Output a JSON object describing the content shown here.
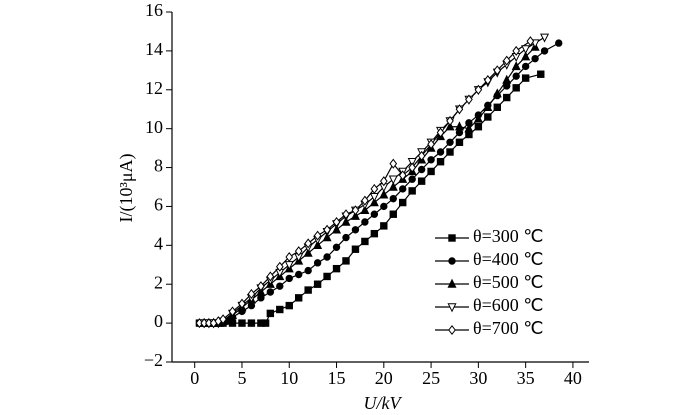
{
  "chart_data": {
    "type": "line",
    "xlabel": "U/kV",
    "ylabel": "I/(10³μA)",
    "xlim": [
      -2.4,
      41.7
    ],
    "ylim": [
      -2,
      16
    ],
    "xticks": [
      0,
      5,
      10,
      15,
      20,
      25,
      30,
      35,
      40
    ],
    "yticks": [
      {
        "value": -2,
        "label": "−2"
      },
      0,
      2,
      4,
      6,
      8,
      10,
      12,
      14,
      16
    ],
    "legend": "lower right",
    "series": [
      {
        "name": "θ=300 ℃",
        "color": "#000000",
        "marker": "square",
        "x": [
          0.5,
          1,
          1.5,
          2,
          2.5,
          3,
          4,
          5,
          6,
          7,
          7.5,
          8,
          9,
          10,
          11,
          12,
          13,
          14,
          15,
          16,
          17,
          18,
          19,
          20,
          21,
          22,
          23,
          24,
          25,
          26,
          27,
          28,
          29,
          30,
          31,
          32,
          33,
          34,
          35,
          36.6
        ],
        "values": [
          0,
          0,
          0,
          0,
          0,
          0,
          0,
          0,
          0,
          0,
          0,
          0.5,
          0.7,
          0.9,
          1.3,
          1.7,
          2.0,
          2.4,
          2.8,
          3.2,
          3.8,
          4.2,
          4.6,
          5.0,
          5.6,
          6.2,
          6.8,
          7.3,
          7.8,
          8.3,
          8.8,
          9.3,
          9.7,
          10.1,
          10.6,
          11.1,
          11.6,
          12.1,
          12.6,
          12.8
        ]
      },
      {
        "name": "θ=400 ℃",
        "color": "#000000",
        "marker": "circle",
        "x": [
          1,
          1.5,
          2,
          2.5,
          3,
          3.5,
          4,
          5,
          6,
          7,
          8,
          9,
          10,
          11,
          12,
          13,
          14,
          15,
          16,
          17,
          18,
          19,
          20,
          21,
          22,
          23,
          24,
          25,
          26,
          27,
          28,
          29,
          30,
          31,
          32,
          33,
          34,
          35,
          36,
          37,
          38.5
        ],
        "values": [
          0,
          0,
          0,
          0,
          0,
          0.1,
          0.3,
          0.6,
          0.9,
          1.3,
          1.6,
          1.9,
          2.3,
          2.5,
          2.7,
          3.1,
          3.4,
          3.9,
          4.4,
          4.8,
          5.2,
          5.6,
          6.0,
          6.4,
          6.9,
          7.4,
          7.9,
          8.4,
          8.8,
          9.3,
          9.8,
          10.3,
          10.7,
          11.2,
          11.7,
          12.2,
          12.7,
          13.2,
          13.6,
          14.0,
          14.4
        ]
      },
      {
        "name": "θ=500 ℃",
        "color": "#000000",
        "marker": "triangle",
        "x": [
          1,
          1.5,
          2,
          2.5,
          3,
          4,
          5,
          6,
          7,
          8,
          9,
          10,
          11,
          12,
          13,
          14,
          15,
          16,
          17,
          18,
          19,
          20,
          21,
          22,
          23,
          24,
          25,
          26,
          27,
          28,
          29,
          30,
          31,
          32,
          33,
          34,
          35,
          36
        ],
        "values": [
          0,
          0,
          0,
          0,
          0.1,
          0.4,
          0.8,
          1.2,
          1.6,
          2.0,
          2.4,
          2.8,
          3.2,
          3.6,
          4.0,
          4.4,
          4.8,
          5.2,
          5.5,
          5.8,
          6.2,
          6.6,
          7.0,
          7.4,
          7.8,
          8.4,
          9.0,
          9.6,
          10.1,
          10.1,
          10.0,
          10.5,
          11.1,
          11.8,
          12.5,
          13.2,
          13.7,
          14.2
        ]
      },
      {
        "name": "θ=600 ℃",
        "color": "#000000",
        "marker": "triangle-down",
        "x": [
          1,
          1.5,
          2,
          2.5,
          3,
          4,
          5,
          6,
          7,
          8,
          9,
          10,
          11,
          12,
          13,
          14,
          15,
          16,
          17,
          18,
          19,
          20,
          21,
          22,
          23,
          24,
          25,
          26,
          27,
          28,
          29,
          30,
          31,
          32,
          33,
          34,
          35,
          36,
          37
        ],
        "values": [
          0,
          0,
          0,
          0,
          0.1,
          0.5,
          0.9,
          1.3,
          1.8,
          2.2,
          2.6,
          3.0,
          3.4,
          3.9,
          4.3,
          4.7,
          5.1,
          5.5,
          5.8,
          6.1,
          6.5,
          7.0,
          7.4,
          7.8,
          8.3,
          8.8,
          9.3,
          9.9,
          10.4,
          11.0,
          11.5,
          12.0,
          12.4,
          12.9,
          13.3,
          13.7,
          14.1,
          14.4,
          14.7
        ]
      },
      {
        "name": "θ=700 ℃",
        "color": "#000000",
        "marker": "diamond",
        "x": [
          0.5,
          1,
          1.5,
          2,
          2.5,
          3,
          4,
          5,
          6,
          7,
          8,
          9,
          10,
          11,
          12,
          13,
          14,
          15,
          16,
          17,
          18,
          19,
          20,
          21,
          22,
          23,
          24,
          25,
          26,
          27,
          28,
          29,
          30,
          31,
          32,
          33,
          34,
          35.5
        ],
        "values": [
          0,
          0,
          0,
          0,
          0.1,
          0.2,
          0.6,
          1.0,
          1.5,
          1.9,
          2.4,
          2.9,
          3.4,
          3.7,
          4.1,
          4.5,
          4.8,
          5.2,
          5.6,
          5.8,
          6.3,
          6.9,
          7.3,
          8.2,
          7.6,
          8.0,
          8.6,
          9.2,
          9.8,
          10.4,
          11.0,
          11.5,
          12.0,
          12.5,
          13.0,
          13.5,
          14.0,
          14.5
        ]
      }
    ]
  }
}
